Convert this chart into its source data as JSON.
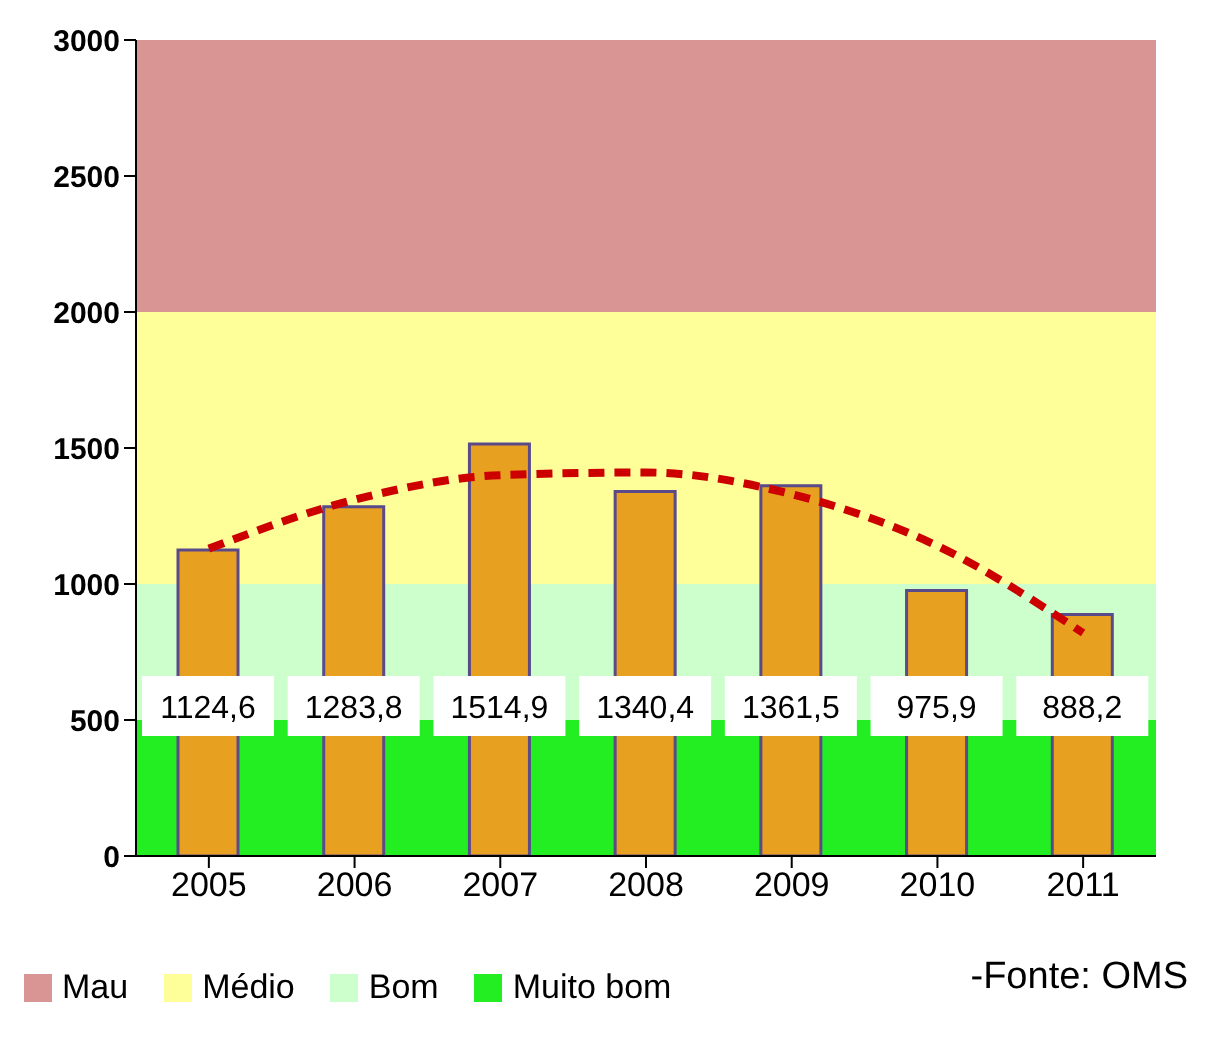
{
  "chart_data": {
    "type": "bar",
    "categories": [
      "2005",
      "2006",
      "2007",
      "2008",
      "2009",
      "2010",
      "2011"
    ],
    "series": [
      {
        "color": "#e8a020",
        "values": [
          1124.6,
          1283.8,
          1514.9,
          1340.4,
          1361.5,
          975.9,
          888.2
        ]
      },
      {
        "type": "line",
        "color": "#cc0000",
        "line_style": "dashed",
        "marker": "none",
        "values": [
          1130,
          1310,
          1400,
          1410,
          1330,
          1140,
          820
        ]
      }
    ],
    "value_labels": [
      "1124,6",
      "1283,8",
      "1514,9",
      "1340,4",
      "1361,5",
      "975,9",
      "888,2"
    ],
    "ylim": [
      0,
      3000
    ],
    "yticks": [
      0,
      500,
      1000,
      1500,
      2000,
      2500,
      3000
    ],
    "grid": false,
    "bands": [
      {
        "axis": "y",
        "from": 2000,
        "to": 3000,
        "label": "Mau",
        "color": "#d99594"
      },
      {
        "axis": "y",
        "from": 1000,
        "to": 2000,
        "label": "Médio",
        "color": "#ffff99"
      },
      {
        "axis": "y",
        "from": 500,
        "to": 1000,
        "label": "Bom",
        "color": "#ccffcc"
      },
      {
        "axis": "y",
        "from": 0,
        "to": 500,
        "label": "Muito bom",
        "color": "#22ee22"
      }
    ],
    "legend": "bottom",
    "annotations": [
      "-Fonte: OMS"
    ]
  }
}
